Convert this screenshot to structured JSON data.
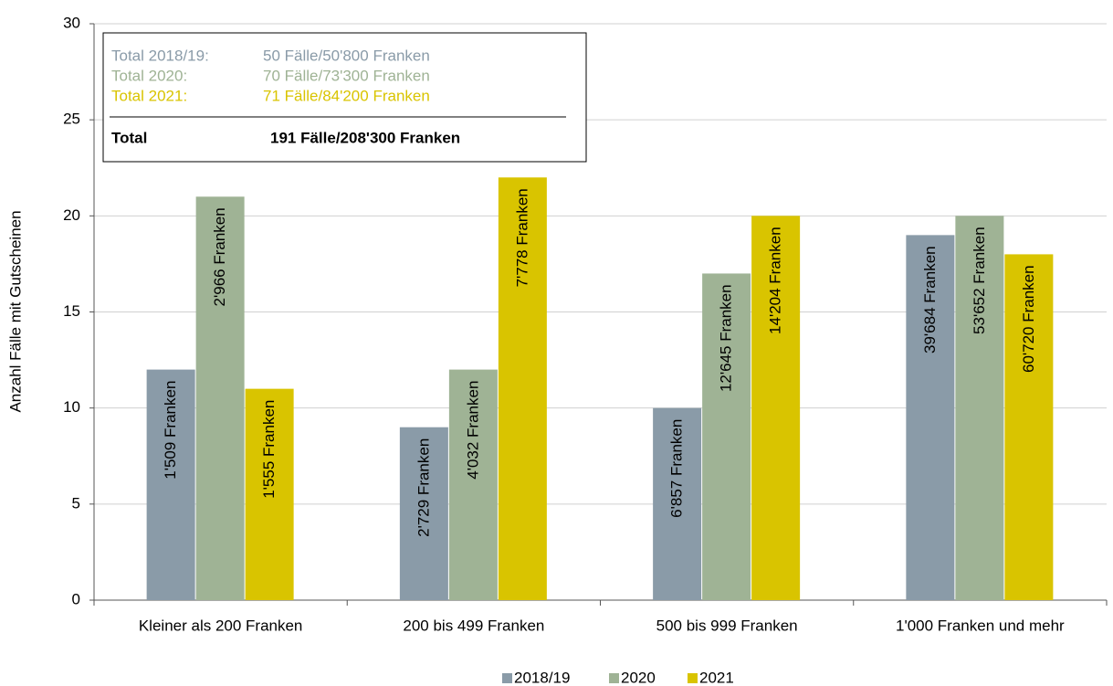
{
  "chart_data": {
    "type": "bar",
    "y_axis_label": "Anzahl Fälle mit Gutscheinen",
    "categories": [
      "Kleiner als 200 Franken",
      "200 bis 499 Franken",
      "500 bis 999 Franken",
      "1'000 Franken und mehr"
    ],
    "series": [
      {
        "name": "2018/19",
        "color": "#8a9ba8",
        "values": [
          12,
          9,
          10,
          19
        ],
        "bar_labels": [
          "1'509 Franken",
          "2'729 Franken",
          "6'857 Franken",
          "39'684 Franken"
        ]
      },
      {
        "name": "2020",
        "color": "#9fb395",
        "values": [
          21,
          12,
          17,
          20
        ],
        "bar_labels": [
          "2'966 Franken",
          "4'032 Franken",
          "12'645 Franken",
          "53'652 Franken"
        ]
      },
      {
        "name": "2021",
        "color": "#d9c400",
        "values": [
          11,
          22,
          20,
          18
        ],
        "bar_labels": [
          "1'555 Franken",
          "7'778 Franken",
          "14'204 Franken",
          "60'720 Franken"
        ]
      }
    ],
    "ylim": [
      0,
      30
    ],
    "yticks": [
      0,
      5,
      10,
      15,
      20,
      25,
      30
    ],
    "grid": true,
    "summary_box": {
      "rows": [
        [
          "Total 2018/19:",
          "50 Fälle/50'800 Franken"
        ],
        [
          "Total 2020:",
          "70 Fälle/73'300 Franken"
        ],
        [
          "Total 2021:",
          "71 Fälle/84'200 Franken"
        ]
      ],
      "total": [
        "Total",
        "191 Fälle/208'300 Franken"
      ]
    },
    "legend": "bottom"
  }
}
